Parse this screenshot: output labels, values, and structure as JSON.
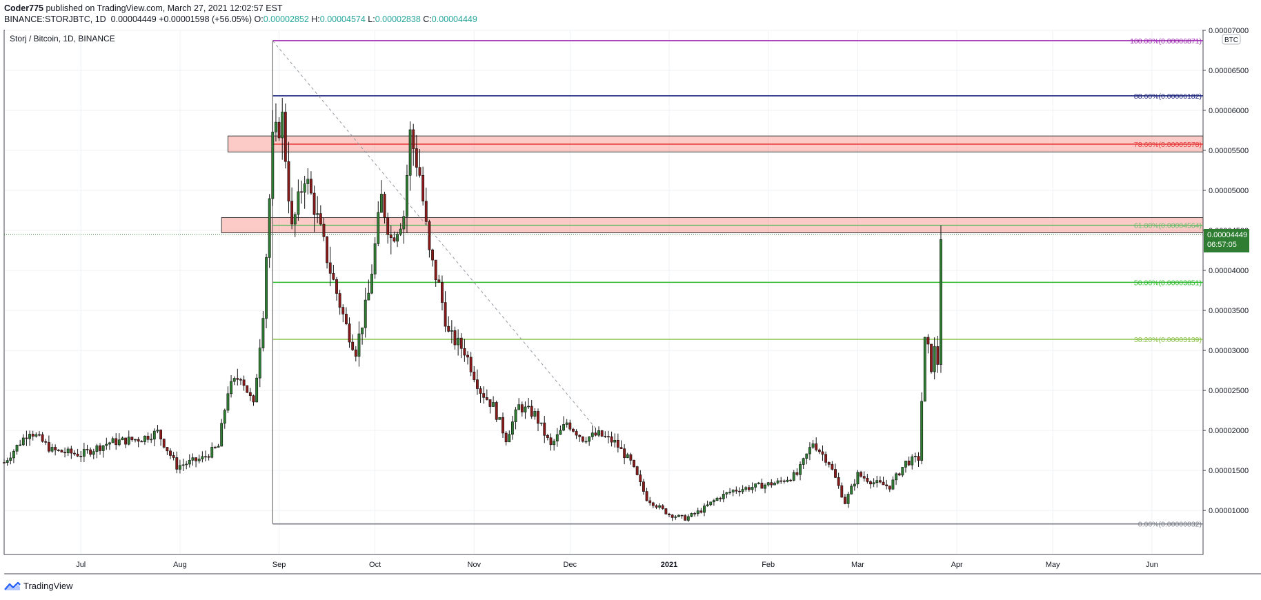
{
  "header": {
    "author": "Coder775",
    "published": "published on TradingView.com, March 27, 2021 12:02:57 EST",
    "symbol": "BINANCE:STORJBTC, 1D",
    "last": "0.00004449",
    "change": "+0.00001598 (+56.05%)",
    "o_label": "O:",
    "o_value": "0.00002852",
    "h_label": "H:",
    "h_value": "0.00004574",
    "l_label": "L:",
    "l_value": "0.00002838",
    "c_label": "C:",
    "c_value": "0.00004449"
  },
  "footer": {
    "brand": "TradingView",
    "logo_icon": "tradingview-logo-icon"
  },
  "colors": {
    "up": "#26a69a",
    "down": "#ef5350",
    "candle_up": "#2e7d32",
    "candle_down": "#8b1a1a"
  },
  "chart_data": {
    "type": "candlestick",
    "title": "Storj / Bitcoin, 1D, BINANCE",
    "currency_badge": "BTC",
    "ylim": [
      4.5e-06,
      7e-05
    ],
    "y_ticks": [
      "0.00001000",
      "0.00001500",
      "0.00002000",
      "0.00002500",
      "0.00003000",
      "0.00003500",
      "0.00004000",
      "0.00004500",
      "0.00005000",
      "0.00005500",
      "0.00006000",
      "0.00006500",
      "0.00007000"
    ],
    "x_range": [
      "2020-06-07",
      "2021-06-17"
    ],
    "x_ticks": [
      {
        "date": "2020-07-01",
        "label": "Jul"
      },
      {
        "date": "2020-08-01",
        "label": "Aug"
      },
      {
        "date": "2020-09-01",
        "label": "Sep"
      },
      {
        "date": "2020-10-01",
        "label": "Oct"
      },
      {
        "date": "2020-11-01",
        "label": "Nov"
      },
      {
        "date": "2020-12-01",
        "label": "Dec"
      },
      {
        "date": "2021-01-01",
        "label": "2021"
      },
      {
        "date": "2021-02-01",
        "label": "Feb"
      },
      {
        "date": "2021-03-01",
        "label": "Mar"
      },
      {
        "date": "2021-04-01",
        "label": "Apr"
      },
      {
        "date": "2021-05-01",
        "label": "May"
      },
      {
        "date": "2021-06-01",
        "label": "Jun"
      }
    ],
    "price_label": {
      "value": "0.00004449",
      "countdown": "06:57:05"
    },
    "fib_levels": [
      {
        "label": "100.00%(0.00006871)",
        "value": 6.871e-05,
        "color": "#9c27b0"
      },
      {
        "label": "88.60%(0.00006182)",
        "value": 6.182e-05,
        "color": "#1a237e"
      },
      {
        "label": "78.60%(0.00005578)",
        "value": 5.578e-05,
        "color": "#e53935"
      },
      {
        "label": "61.80%(0.00004564)",
        "value": 4.564e-05,
        "color": "#66bb6a"
      },
      {
        "label": "50.00%(0.00003851)",
        "value": 3.851e-05,
        "color": "#2eb82e"
      },
      {
        "label": "38.20%(0.00003139)",
        "value": 3.139e-05,
        "color": "#8bc34a"
      },
      {
        "label": "0.00%(0.00000832)",
        "value": 8.32e-06,
        "color": "#787b86"
      }
    ],
    "fib_start": "2020-08-30",
    "fib_end": "2021-06-17",
    "zones": [
      {
        "from": "2020-08-16",
        "to": "2021-06-17",
        "low": 5.48e-05,
        "high": 5.68e-05
      },
      {
        "from": "2020-08-14",
        "to": "2021-06-17",
        "low": 4.47e-05,
        "high": 4.66e-05
      }
    ],
    "trendline": {
      "from": {
        "date": "2020-08-30",
        "value": 6.87e-05
      },
      "to": {
        "date": "2020-12-10",
        "value": 1.98e-05
      }
    },
    "anchors": [
      [
        "2020-06-07",
        1.6e-05
      ],
      [
        "2020-06-15",
        2e-05
      ],
      [
        "2020-06-22",
        1.75e-05
      ],
      [
        "2020-07-01",
        1.7e-05
      ],
      [
        "2020-07-10",
        1.85e-05
      ],
      [
        "2020-07-20",
        1.9e-05
      ],
      [
        "2020-07-25",
        1.98e-05
      ],
      [
        "2020-07-31",
        1.55e-05
      ],
      [
        "2020-08-08",
        1.65e-05
      ],
      [
        "2020-08-13",
        1.8e-05
      ],
      [
        "2020-08-16",
        2.5e-05
      ],
      [
        "2020-08-20",
        2.7e-05
      ],
      [
        "2020-08-24",
        2.3e-05
      ],
      [
        "2020-08-27",
        3.5e-05
      ],
      [
        "2020-08-30",
        5.6e-05
      ],
      [
        "2020-09-02",
        5.9e-05
      ],
      [
        "2020-09-05",
        4.5e-05
      ],
      [
        "2020-09-09",
        5.2e-05
      ],
      [
        "2020-09-12",
        4.8e-05
      ],
      [
        "2020-09-17",
        4e-05
      ],
      [
        "2020-09-22",
        3.3e-05
      ],
      [
        "2020-09-25",
        3e-05
      ],
      [
        "2020-09-29",
        3.7e-05
      ],
      [
        "2020-10-03",
        4.9e-05
      ],
      [
        "2020-10-06",
        4.4e-05
      ],
      [
        "2020-10-10",
        4.7e-05
      ],
      [
        "2020-10-12",
        5.7e-05
      ],
      [
        "2020-10-15",
        5.2e-05
      ],
      [
        "2020-10-18",
        4.2e-05
      ],
      [
        "2020-10-21",
        3.8e-05
      ],
      [
        "2020-10-24",
        3.2e-05
      ],
      [
        "2020-10-29",
        3e-05
      ],
      [
        "2020-11-03",
        2.5e-05
      ],
      [
        "2020-11-07",
        2.3e-05
      ],
      [
        "2020-11-11",
        1.9e-05
      ],
      [
        "2020-11-15",
        2.3e-05
      ],
      [
        "2020-11-20",
        2.2e-05
      ],
      [
        "2020-11-25",
        1.8e-05
      ],
      [
        "2020-11-30",
        2.1e-05
      ],
      [
        "2020-12-05",
        1.9e-05
      ],
      [
        "2020-12-10",
        1.95e-05
      ],
      [
        "2020-12-15",
        1.85e-05
      ],
      [
        "2020-12-20",
        1.6e-05
      ],
      [
        "2020-12-25",
        1.15e-05
      ],
      [
        "2021-01-01",
        9.5e-06
      ],
      [
        "2021-01-06",
        9e-06
      ],
      [
        "2021-01-11",
        1e-05
      ],
      [
        "2021-01-16",
        1.15e-05
      ],
      [
        "2021-01-21",
        1.25e-05
      ],
      [
        "2021-01-28",
        1.3e-05
      ],
      [
        "2021-02-04",
        1.35e-05
      ],
      [
        "2021-02-10",
        1.45e-05
      ],
      [
        "2021-02-15",
        1.85e-05
      ],
      [
        "2021-02-20",
        1.6e-05
      ],
      [
        "2021-02-25",
        1.1e-05
      ],
      [
        "2021-03-01",
        1.45e-05
      ],
      [
        "2021-03-06",
        1.35e-05
      ],
      [
        "2021-03-11",
        1.3e-05
      ],
      [
        "2021-03-16",
        1.6e-05
      ],
      [
        "2021-03-20",
        1.65e-05
      ],
      [
        "2021-03-22",
        3.1e-05
      ],
      [
        "2021-03-23",
        3e-05
      ],
      [
        "2021-03-24",
        2.8e-05
      ],
      [
        "2021-03-25",
        3e-05
      ],
      [
        "2021-03-26",
        2.85e-05
      ],
      [
        "2021-03-27",
        4.45e-05
      ]
    ]
  }
}
